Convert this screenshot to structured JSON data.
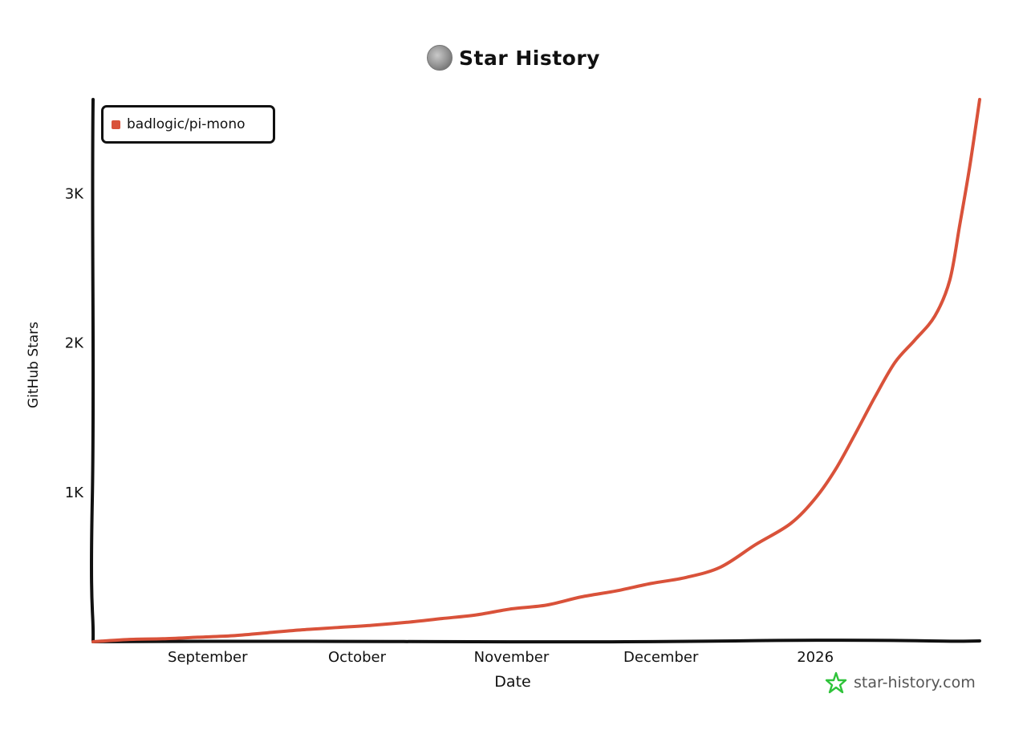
{
  "header": {
    "title": "Star History"
  },
  "watermark": {
    "text": "star-history.com"
  },
  "colors": {
    "series": "#d9523a",
    "axis": "#111111",
    "watermark_icon": "#2fc33a"
  },
  "chart_data": {
    "type": "line",
    "xlabel": "Date",
    "ylabel": "GitHub Stars",
    "x_tick_labels": [
      "September",
      "October",
      "November",
      "December",
      "2026"
    ],
    "x_tick_dates": [
      "2025-09-01",
      "2025-10-01",
      "2025-11-01",
      "2025-12-01",
      "2026-01-01"
    ],
    "x_range": [
      "2025-08-09",
      "2026-02-03"
    ],
    "y_tick_labels": [
      "1K",
      "2K",
      "3K"
    ],
    "y_tick_values": [
      1000,
      2000,
      3000
    ],
    "ylim": [
      0,
      3630
    ],
    "grid": false,
    "legend_position": "top-left",
    "series": [
      {
        "name": "badlogic/pi-mono",
        "color": "#d9523a",
        "x": [
          "2025-08-09",
          "2025-08-16",
          "2025-08-23",
          "2025-08-30",
          "2025-09-06",
          "2025-09-13",
          "2025-09-20",
          "2025-09-27",
          "2025-10-04",
          "2025-10-11",
          "2025-10-18",
          "2025-10-25",
          "2025-11-01",
          "2025-11-08",
          "2025-11-15",
          "2025-11-22",
          "2025-11-29",
          "2025-12-06",
          "2025-12-13",
          "2025-12-20",
          "2025-12-27",
          "2026-01-01",
          "2026-01-05",
          "2026-01-09",
          "2026-01-13",
          "2026-01-17",
          "2026-01-21",
          "2026-01-25",
          "2026-01-28",
          "2026-01-30",
          "2026-02-01",
          "2026-02-03"
        ],
        "y": [
          0,
          15,
          20,
          30,
          40,
          60,
          80,
          95,
          110,
          130,
          155,
          180,
          220,
          245,
          300,
          340,
          390,
          430,
          500,
          650,
          790,
          960,
          1150,
          1390,
          1640,
          1870,
          2020,
          2180,
          2420,
          2790,
          3180,
          3630
        ]
      }
    ]
  }
}
